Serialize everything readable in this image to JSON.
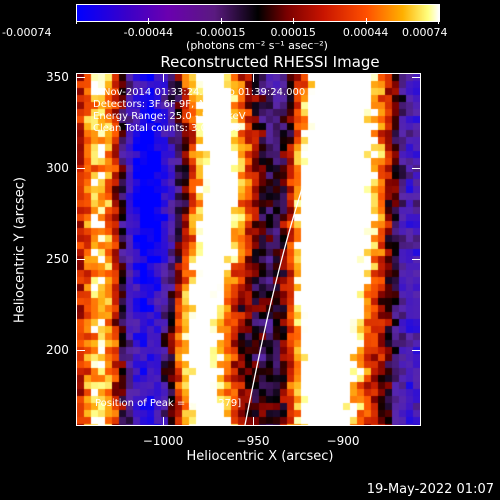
{
  "colorbar": {
    "tick_labels": [
      "-0.00074",
      "-0.00044",
      "-0.00015",
      "0.00015",
      "0.00044",
      "0.00074"
    ],
    "units": "(photons cm⁻² s⁻¹ asec⁻²)"
  },
  "title": "Reconstructed RHESSI Image",
  "info": {
    "time": "4-Nov-2014 01:33:24.000 to 01:39:24.000",
    "detectors": "Detectors: 3F 6F 9F, Att 0",
    "energy": "Energy Range: 25.0 - 50.0 keV",
    "clean": "Clean     Total counts: 3.00E+03",
    "peak": "Position of Peak = [-903,279]"
  },
  "axes": {
    "xlabel": "Heliocentric X (arcsec)",
    "ylabel": "Heliocentric Y (arcsec)",
    "xticks": [
      {
        "value": -1000,
        "label": "−1000"
      },
      {
        "value": -950,
        "label": "−950"
      },
      {
        "value": -900,
        "label": "−900"
      }
    ],
    "yticks": [
      {
        "value": 200,
        "label": "200"
      },
      {
        "value": 250,
        "label": "250"
      },
      {
        "value": 300,
        "label": "300"
      },
      {
        "value": 350,
        "label": "350"
      }
    ],
    "xlim": [
      -1043,
      -953
    ],
    "ylim": [
      157,
      352
    ]
  },
  "datestamp": "19-May-2022 01:07"
}
